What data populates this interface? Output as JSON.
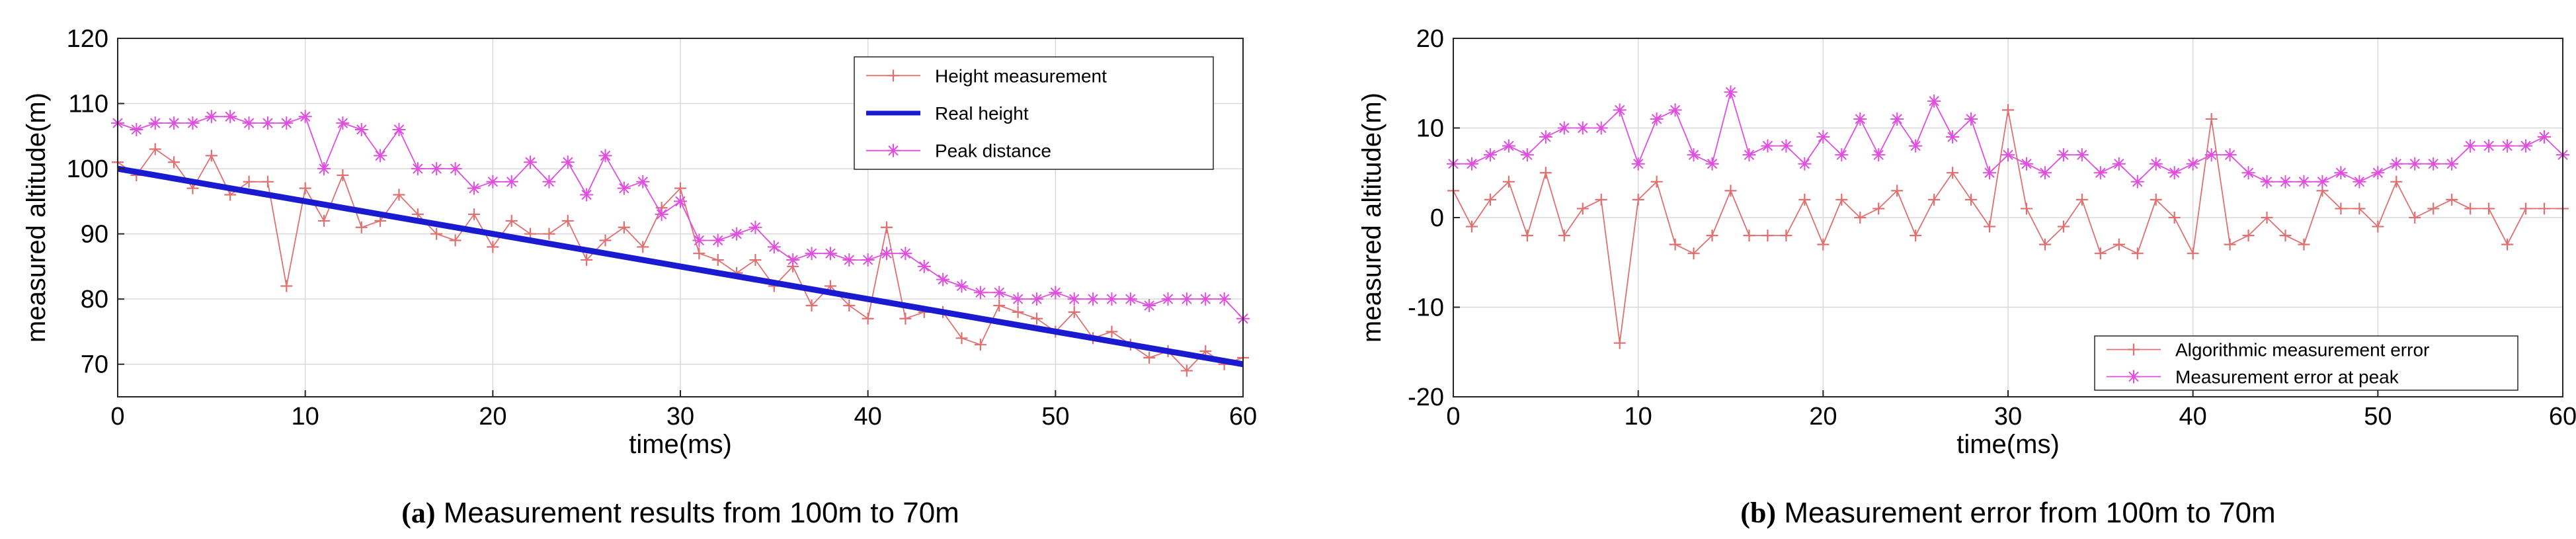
{
  "chart_data": [
    {
      "type": "line",
      "title": "",
      "caption": {
        "prefix": "(a)",
        "text": "Measurement results from 100m to 70m"
      },
      "xlabel": "time(ms)",
      "ylabel": "measured altitude(m)",
      "xlim": [
        0,
        60
      ],
      "ylim": [
        65,
        120
      ],
      "xticks": [
        0,
        10,
        20,
        30,
        40,
        50,
        60
      ],
      "yticks": [
        70,
        80,
        90,
        100,
        110,
        120
      ],
      "grid": true,
      "legend_position": "top-right",
      "series": [
        {
          "name": "Height measurement",
          "color": "#e07070",
          "marker": "plus",
          "x": [
            0,
            1,
            2,
            3,
            4,
            5,
            6,
            7,
            8,
            9,
            10,
            11,
            12,
            13,
            14,
            15,
            16,
            17,
            18,
            19,
            20,
            21,
            22,
            23,
            24,
            25,
            26,
            27,
            28,
            29,
            30,
            31,
            32,
            33,
            34,
            35,
            36,
            37,
            38,
            39,
            40,
            41,
            42,
            43,
            44,
            45,
            46,
            47,
            48,
            49,
            50,
            51,
            52,
            53,
            54,
            55,
            56,
            57,
            58,
            59,
            60
          ],
          "values": [
            101,
            99,
            103,
            101,
            97,
            102,
            96,
            98,
            98,
            82,
            97,
            92,
            99,
            91,
            92,
            96,
            93,
            90,
            89,
            93,
            88,
            92,
            90,
            90,
            92,
            86,
            89,
            91,
            88,
            94,
            97,
            87,
            86,
            84,
            86,
            82,
            85,
            79,
            82,
            79,
            77,
            91,
            77,
            78,
            78,
            74,
            73,
            79,
            78,
            77,
            75,
            78,
            74,
            75,
            73,
            71,
            72,
            69,
            72,
            70,
            71
          ]
        },
        {
          "name": "Real height",
          "color": "#1a1ad0",
          "marker": "none",
          "x": [
            0,
            60
          ],
          "values": [
            100,
            70
          ]
        },
        {
          "name": "Peak distance",
          "color": "#e04ee0",
          "marker": "star",
          "x": [
            0,
            1,
            2,
            3,
            4,
            5,
            6,
            7,
            8,
            9,
            10,
            11,
            12,
            13,
            14,
            15,
            16,
            17,
            18,
            19,
            20,
            21,
            22,
            23,
            24,
            25,
            26,
            27,
            28,
            29,
            30,
            31,
            32,
            33,
            34,
            35,
            36,
            37,
            38,
            39,
            40,
            41,
            42,
            43,
            44,
            45,
            46,
            47,
            48,
            49,
            50,
            51,
            52,
            53,
            54,
            55,
            56,
            57,
            58,
            59,
            60
          ],
          "values": [
            107,
            106,
            107,
            107,
            107,
            108,
            108,
            107,
            107,
            107,
            108,
            100,
            107,
            106,
            102,
            106,
            100,
            100,
            100,
            97,
            98,
            98,
            101,
            98,
            101,
            96,
            102,
            97,
            98,
            93,
            95,
            89,
            89,
            90,
            91,
            88,
            86,
            87,
            87,
            86,
            86,
            87,
            87,
            85,
            83,
            82,
            81,
            81,
            80,
            80,
            81,
            80,
            80,
            80,
            80,
            79,
            80,
            80,
            80,
            80,
            77
          ]
        }
      ]
    },
    {
      "type": "line",
      "title": "",
      "caption": {
        "prefix": "(b)",
        "text": "Measurement error from 100m to 70m"
      },
      "xlabel": "time(ms)",
      "ylabel": "measured altitude(m)",
      "xlim": [
        0,
        60
      ],
      "ylim": [
        -20,
        20
      ],
      "xticks": [
        0,
        10,
        20,
        30,
        40,
        50,
        60
      ],
      "yticks": [
        -20,
        -10,
        0,
        10,
        20
      ],
      "grid": true,
      "legend_position": "bottom-right",
      "series": [
        {
          "name": "Algorithmic measurement error",
          "color": "#e07070",
          "marker": "plus",
          "x": [
            0,
            1,
            2,
            3,
            4,
            5,
            6,
            7,
            8,
            9,
            10,
            11,
            12,
            13,
            14,
            15,
            16,
            17,
            18,
            19,
            20,
            21,
            22,
            23,
            24,
            25,
            26,
            27,
            28,
            29,
            30,
            31,
            32,
            33,
            34,
            35,
            36,
            37,
            38,
            39,
            40,
            41,
            42,
            43,
            44,
            45,
            46,
            47,
            48,
            49,
            50,
            51,
            52,
            53,
            54,
            55,
            56,
            57,
            58,
            59,
            60
          ],
          "values": [
            3,
            -1,
            2,
            4,
            -2,
            5,
            -2,
            1,
            2,
            -14,
            2,
            4,
            -3,
            -4,
            -2,
            3,
            -2,
            -2,
            -2,
            2,
            -3,
            2,
            0,
            1,
            3,
            -2,
            2,
            5,
            2,
            -1,
            12,
            1,
            -3,
            -1,
            2,
            -4,
            -3,
            -4,
            2,
            0,
            -4,
            11,
            -3,
            -2,
            0,
            -2,
            -3,
            3,
            1,
            1,
            -1,
            4,
            0,
            1,
            2,
            1,
            1,
            -3,
            1,
            1,
            1
          ]
        },
        {
          "name": "Measurement error at peak",
          "color": "#e04ee0",
          "marker": "star",
          "x": [
            0,
            1,
            2,
            3,
            4,
            5,
            6,
            7,
            8,
            9,
            10,
            11,
            12,
            13,
            14,
            15,
            16,
            17,
            18,
            19,
            20,
            21,
            22,
            23,
            24,
            25,
            26,
            27,
            28,
            29,
            30,
            31,
            32,
            33,
            34,
            35,
            36,
            37,
            38,
            39,
            40,
            41,
            42,
            43,
            44,
            45,
            46,
            47,
            48,
            49,
            50,
            51,
            52,
            53,
            54,
            55,
            56,
            57,
            58,
            59,
            60
          ],
          "values": [
            6,
            6,
            7,
            8,
            7,
            9,
            10,
            10,
            10,
            12,
            6,
            11,
            12,
            7,
            6,
            14,
            7,
            8,
            8,
            6,
            9,
            7,
            11,
            7,
            11,
            8,
            13,
            9,
            11,
            5,
            7,
            6,
            5,
            7,
            7,
            5,
            6,
            4,
            6,
            5,
            6,
            7,
            7,
            5,
            4,
            4,
            4,
            4,
            5,
            4,
            5,
            6,
            6,
            6,
            6,
            8,
            8,
            8,
            8,
            9,
            7
          ]
        }
      ]
    }
  ]
}
